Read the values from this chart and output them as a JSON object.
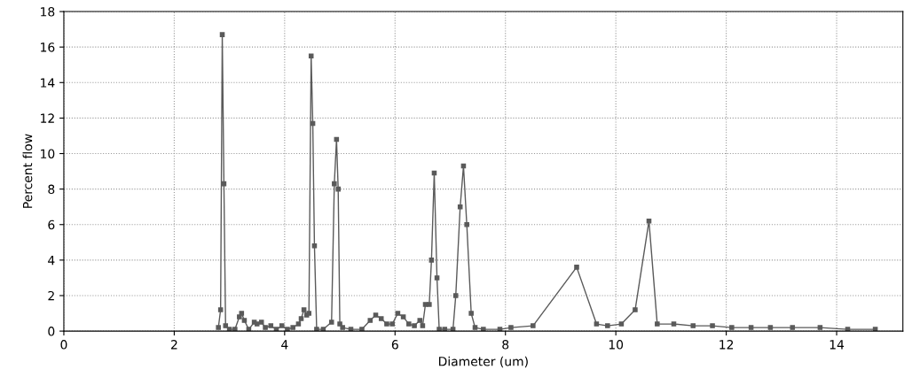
{
  "chart_data": {
    "type": "line",
    "xlabel": "Diameter (um)",
    "ylabel": "Percent flow",
    "xlim": [
      0,
      15.2
    ],
    "xticks": [
      0,
      2,
      4,
      6,
      8,
      10,
      12,
      14
    ],
    "ylim": [
      0,
      18
    ],
    "yticks": [
      0,
      2,
      4,
      6,
      8,
      10,
      12,
      14,
      16,
      18
    ],
    "grid": true,
    "marker": "square",
    "line_style": "solid",
    "legend": false,
    "series": [
      {
        "color": "#5a5a5a",
        "x": [
          2.8,
          2.84,
          2.87,
          2.9,
          2.93,
          3.0,
          3.1,
          3.18,
          3.22,
          3.27,
          3.35,
          3.45,
          3.5,
          3.58,
          3.65,
          3.75,
          3.85,
          3.95,
          4.05,
          4.15,
          4.25,
          4.3,
          4.35,
          4.4,
          4.44,
          4.48,
          4.51,
          4.54,
          4.58,
          4.7,
          4.85,
          4.9,
          4.94,
          4.97,
          5.0,
          5.05,
          5.2,
          5.4,
          5.55,
          5.65,
          5.75,
          5.85,
          5.95,
          6.05,
          6.15,
          6.25,
          6.35,
          6.45,
          6.5,
          6.55,
          6.62,
          6.66,
          6.71,
          6.76,
          6.8,
          6.9,
          7.05,
          7.1,
          7.18,
          7.24,
          7.3,
          7.38,
          7.45,
          7.6,
          7.9,
          8.1,
          8.5,
          9.29,
          9.65,
          9.85,
          10.1,
          10.35,
          10.6,
          10.75,
          11.05,
          11.4,
          11.75,
          12.1,
          12.45,
          12.8,
          13.2,
          13.7,
          14.2,
          14.7
        ],
        "values": [
          0.2,
          1.2,
          16.7,
          8.3,
          0.3,
          0.1,
          0.1,
          0.8,
          1.0,
          0.6,
          0.1,
          0.5,
          0.4,
          0.5,
          0.2,
          0.3,
          0.1,
          0.3,
          0.1,
          0.2,
          0.4,
          0.7,
          1.2,
          0.9,
          1.0,
          15.5,
          11.7,
          4.8,
          0.1,
          0.1,
          0.5,
          8.3,
          10.8,
          8.0,
          0.4,
          0.2,
          0.1,
          0.1,
          0.6,
          0.9,
          0.7,
          0.4,
          0.4,
          1.0,
          0.8,
          0.4,
          0.3,
          0.6,
          0.3,
          1.5,
          1.5,
          4.0,
          8.9,
          3.0,
          0.1,
          0.1,
          0.1,
          2.0,
          7.0,
          9.3,
          6.0,
          1.0,
          0.2,
          0.1,
          0.1,
          0.2,
          0.3,
          3.6,
          0.4,
          0.3,
          0.4,
          1.2,
          6.2,
          0.4,
          0.4,
          0.3,
          0.3,
          0.2,
          0.2,
          0.2,
          0.2,
          0.2,
          0.1,
          0.1
        ]
      }
    ]
  }
}
